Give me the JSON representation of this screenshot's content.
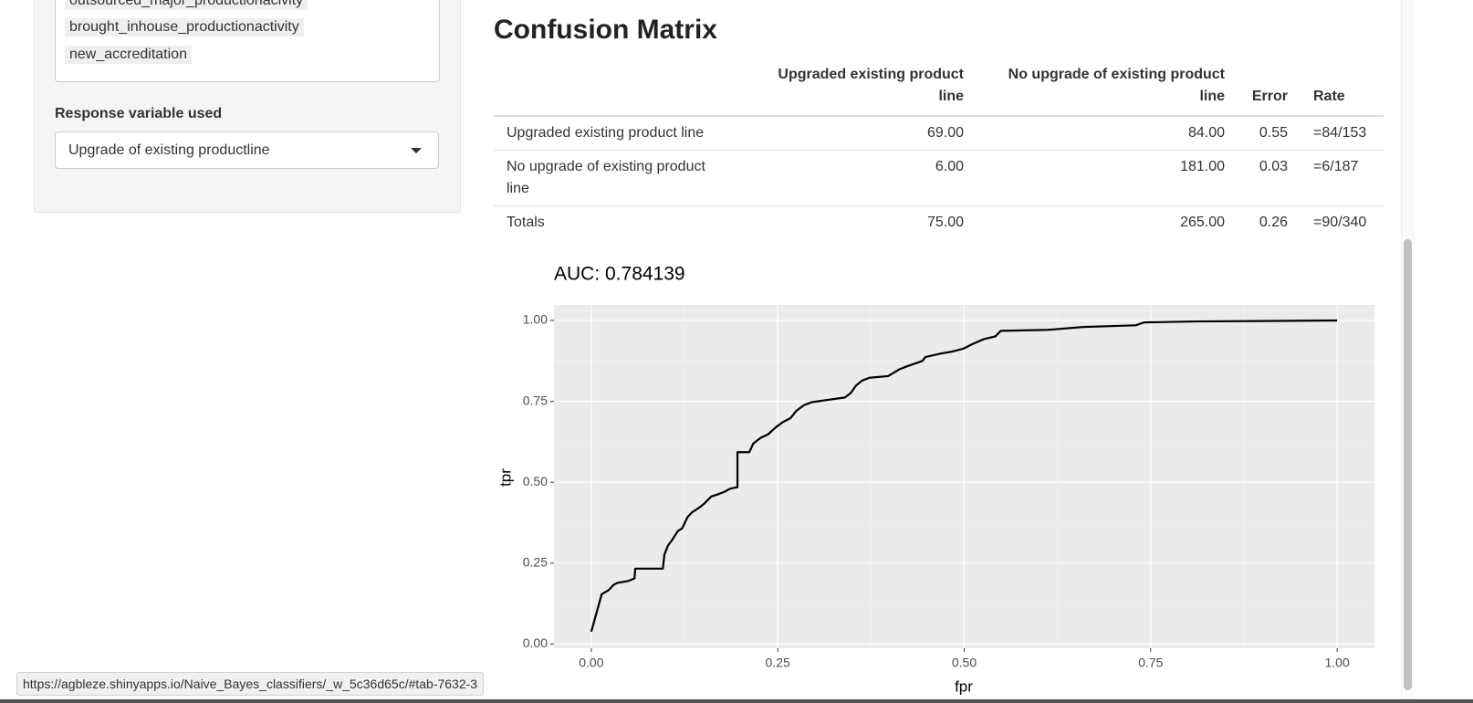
{
  "sidebar": {
    "selected_items": [
      "outsourced_major_productionacivity",
      "brought_inhouse_productionactivity",
      "new_accreditation"
    ],
    "response_label": "Response variable used",
    "response_value": "Upgrade of existing productline"
  },
  "confusion_matrix": {
    "title": "Confusion Matrix",
    "header": [
      "Upgraded existing product line",
      "No upgrade of existing product line",
      "Error",
      "Rate"
    ],
    "rows": [
      [
        "Upgraded existing product line",
        "69.00",
        "84.00",
        "0.55",
        "=84/153"
      ],
      [
        "No upgrade of existing product line",
        "6.00",
        "181.00",
        "0.03",
        "=6/187"
      ],
      [
        "Totals",
        "75.00",
        "265.00",
        "0.26",
        "=90/340"
      ]
    ]
  },
  "chart_data": {
    "type": "line",
    "title": "AUC: 0.784139",
    "x_label": "fpr",
    "y_label": "tpr",
    "color": "#000000",
    "grid": true,
    "x": [
      0,
      0.014,
      0.023,
      0.03,
      0.035,
      0.05,
      0.058,
      0.059,
      0.096,
      0.098,
      0.103,
      0.108,
      0.116,
      0.122,
      0.129,
      0.135,
      0.145,
      0.151,
      0.161,
      0.169,
      0.179,
      0.186,
      0.196,
      0.196,
      0.212,
      0.217,
      0.227,
      0.237,
      0.247,
      0.257,
      0.267,
      0.275,
      0.285,
      0.295,
      0.312,
      0.34,
      0.348,
      0.355,
      0.363,
      0.373,
      0.398,
      0.413,
      0.423,
      0.444,
      0.448,
      0.469,
      0.484,
      0.499,
      0.511,
      0.526,
      0.542,
      0.549,
      0.612,
      0.66,
      0.73,
      0.741,
      0.811,
      1.0
    ],
    "values": [
      0.038,
      0.154,
      0.166,
      0.183,
      0.189,
      0.195,
      0.203,
      0.233,
      0.233,
      0.276,
      0.305,
      0.32,
      0.349,
      0.358,
      0.392,
      0.407,
      0.422,
      0.433,
      0.456,
      0.462,
      0.471,
      0.48,
      0.485,
      0.593,
      0.593,
      0.619,
      0.637,
      0.648,
      0.669,
      0.686,
      0.698,
      0.721,
      0.738,
      0.747,
      0.753,
      0.762,
      0.776,
      0.799,
      0.814,
      0.823,
      0.828,
      0.849,
      0.858,
      0.875,
      0.887,
      0.898,
      0.904,
      0.913,
      0.927,
      0.942,
      0.951,
      0.968,
      0.971,
      0.98,
      0.985,
      0.994,
      0.997,
      1.0
    ],
    "xlim": [
      -0.05,
      1.05
    ],
    "ylim": [
      -0.013,
      1.048
    ],
    "xticks": [
      {
        "value": 0,
        "label": "0.00"
      },
      {
        "value": 0.25,
        "label": "0.25"
      },
      {
        "value": 0.5,
        "label": "0.50"
      },
      {
        "value": 0.75,
        "label": "0.75"
      },
      {
        "value": 1,
        "label": "1.00"
      }
    ],
    "yticks": [
      {
        "value": 0,
        "label": "0.00"
      },
      {
        "value": 0.25,
        "label": "0.25"
      },
      {
        "value": 0.5,
        "label": "0.50"
      },
      {
        "value": 0.75,
        "label": "0.75"
      },
      {
        "value": 1,
        "label": "1.00"
      }
    ]
  },
  "status_url": "https://agbleze.shinyapps.io/Naive_Bayes_classifiers/_w_5c36d65c/#tab-7632-3"
}
